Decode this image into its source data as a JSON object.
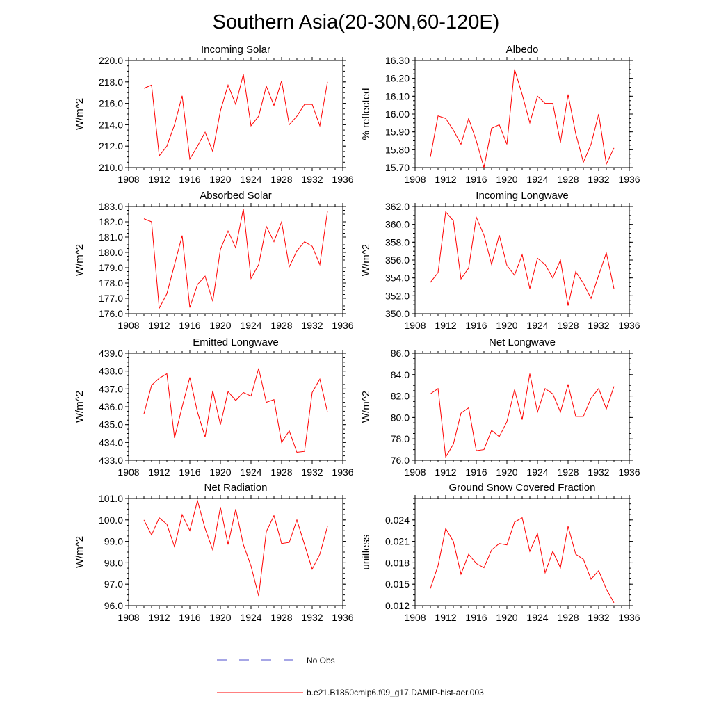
{
  "title": "Southern Asia(20-30N,60-120E)",
  "colors": {
    "model": "#ff0000",
    "obs": "#4d4dcc",
    "axis": "#000000"
  },
  "legend": [
    {
      "label": "No Obs",
      "style": "dashed",
      "color": "#4d4dcc"
    },
    {
      "label": "b.e21.B1850cmip6.f09_g17.DAMIP-hist-aer.003",
      "style": "solid",
      "color": "#ff0000"
    }
  ],
  "chart_data": [
    {
      "type": "line",
      "title": "Incoming Solar",
      "xlabel": "",
      "ylabel": "W/m^2",
      "xlim": [
        1908,
        1936
      ],
      "ylim": [
        210.0,
        220.0
      ],
      "xticks": [
        "1908",
        "1912",
        "1916",
        "1920",
        "1924",
        "1928",
        "1932",
        "1936"
      ],
      "yticks": [
        "210.0",
        "212.0",
        "214.0",
        "216.0",
        "218.0",
        "220.0"
      ],
      "x": [
        1910,
        1911,
        1912,
        1913,
        1914,
        1915,
        1916,
        1917,
        1918,
        1919,
        1920,
        1921,
        1922,
        1923,
        1924,
        1925,
        1926,
        1927,
        1928,
        1929,
        1930,
        1931,
        1932,
        1933,
        1934
      ],
      "series": [
        {
          "values": [
            217.4,
            217.7,
            211.1,
            212.0,
            214.0,
            216.7,
            210.8,
            212.0,
            213.3,
            211.5,
            215.3,
            217.7,
            215.9,
            218.7,
            213.9,
            214.8,
            217.6,
            215.8,
            218.1,
            214.0,
            214.8,
            215.9,
            215.9,
            213.9,
            218.0
          ]
        }
      ]
    },
    {
      "type": "line",
      "title": "Albedo",
      "xlabel": "",
      "ylabel": "% reflected",
      "xlim": [
        1908,
        1936
      ],
      "ylim": [
        15.7,
        16.3
      ],
      "xticks": [
        "1908",
        "1912",
        "1916",
        "1920",
        "1924",
        "1928",
        "1932",
        "1936"
      ],
      "yticks": [
        "15.70",
        "15.80",
        "15.90",
        "16.00",
        "16.10",
        "16.20",
        "16.30"
      ],
      "x": [
        1910,
        1911,
        1912,
        1913,
        1914,
        1915,
        1916,
        1917,
        1918,
        1919,
        1920,
        1921,
        1922,
        1923,
        1924,
        1925,
        1926,
        1927,
        1928,
        1929,
        1930,
        1931,
        1932,
        1933,
        1934
      ],
      "series": [
        {
          "values": [
            15.76,
            15.99,
            15.975,
            15.91,
            15.83,
            15.975,
            15.85,
            15.7,
            15.92,
            15.94,
            15.83,
            16.25,
            16.11,
            15.95,
            16.1,
            16.06,
            16.06,
            15.84,
            16.11,
            15.89,
            15.73,
            15.83,
            16.0,
            15.72,
            15.81
          ]
        }
      ]
    },
    {
      "type": "line",
      "title": "Absorbed Solar",
      "xlabel": "",
      "ylabel": "W/m^2",
      "xlim": [
        1908,
        1936
      ],
      "ylim": [
        176.0,
        183.0
      ],
      "xticks": [
        "1908",
        "1912",
        "1916",
        "1920",
        "1924",
        "1928",
        "1932",
        "1936"
      ],
      "yticks": [
        "176.0",
        "177.0",
        "178.0",
        "179.0",
        "180.0",
        "181.0",
        "182.0",
        "183.0"
      ],
      "x": [
        1910,
        1911,
        1912,
        1913,
        1914,
        1915,
        1916,
        1917,
        1918,
        1919,
        1920,
        1921,
        1922,
        1923,
        1924,
        1925,
        1926,
        1927,
        1928,
        1929,
        1930,
        1931,
        1932,
        1933,
        1934
      ],
      "series": [
        {
          "values": [
            182.2,
            182.0,
            176.35,
            177.3,
            179.2,
            181.1,
            176.4,
            177.9,
            178.45,
            176.8,
            180.2,
            181.4,
            180.3,
            182.85,
            178.3,
            179.2,
            181.7,
            180.7,
            182.0,
            179.05,
            180.1,
            180.7,
            180.4,
            179.2,
            182.7
          ]
        }
      ]
    },
    {
      "type": "line",
      "title": "Incoming Longwave",
      "xlabel": "",
      "ylabel": "W/m^2",
      "xlim": [
        1908,
        1936
      ],
      "ylim": [
        350.0,
        362.0
      ],
      "xticks": [
        "1908",
        "1912",
        "1916",
        "1920",
        "1924",
        "1928",
        "1932",
        "1936"
      ],
      "yticks": [
        "350.0",
        "352.0",
        "354.0",
        "356.0",
        "358.0",
        "360.0",
        "362.0"
      ],
      "x": [
        1910,
        1911,
        1912,
        1913,
        1914,
        1915,
        1916,
        1917,
        1918,
        1919,
        1920,
        1921,
        1922,
        1923,
        1924,
        1925,
        1926,
        1927,
        1928,
        1929,
        1930,
        1931,
        1932,
        1933,
        1934
      ],
      "series": [
        {
          "values": [
            353.5,
            354.6,
            361.4,
            360.4,
            353.9,
            355.1,
            360.8,
            358.8,
            355.5,
            358.8,
            355.4,
            354.3,
            356.6,
            352.8,
            356.2,
            355.5,
            354.0,
            356.0,
            350.9,
            354.7,
            353.4,
            351.7,
            354.3,
            356.8,
            352.8
          ]
        }
      ]
    },
    {
      "type": "line",
      "title": "Emitted Longwave",
      "xlabel": "",
      "ylabel": "W/m^2",
      "xlim": [
        1908,
        1936
      ],
      "ylim": [
        433.0,
        439.0
      ],
      "xticks": [
        "1908",
        "1912",
        "1916",
        "1920",
        "1924",
        "1928",
        "1932",
        "1936"
      ],
      "yticks": [
        "433.0",
        "434.0",
        "435.0",
        "436.0",
        "437.0",
        "438.0",
        "439.0"
      ],
      "x": [
        1910,
        1911,
        1912,
        1913,
        1914,
        1915,
        1916,
        1917,
        1918,
        1919,
        1920,
        1921,
        1922,
        1923,
        1924,
        1925,
        1926,
        1927,
        1928,
        1929,
        1930,
        1931,
        1932,
        1933,
        1934
      ],
      "series": [
        {
          "values": [
            435.6,
            437.2,
            437.6,
            437.85,
            434.25,
            436.0,
            437.65,
            435.7,
            434.3,
            436.9,
            435.0,
            436.85,
            436.35,
            436.8,
            436.6,
            438.15,
            436.25,
            436.4,
            434.0,
            434.65,
            433.45,
            433.5,
            436.8,
            437.55,
            435.7
          ]
        }
      ]
    },
    {
      "type": "line",
      "title": "Net Longwave",
      "xlabel": "",
      "ylabel": "W/m^2",
      "xlim": [
        1908,
        1936
      ],
      "ylim": [
        76.0,
        86.0
      ],
      "xticks": [
        "1908",
        "1912",
        "1916",
        "1920",
        "1924",
        "1928",
        "1932",
        "1936"
      ],
      "yticks": [
        "76.0",
        "78.0",
        "80.0",
        "82.0",
        "84.0",
        "86.0"
      ],
      "x": [
        1910,
        1911,
        1912,
        1913,
        1914,
        1915,
        1916,
        1917,
        1918,
        1919,
        1920,
        1921,
        1922,
        1923,
        1924,
        1925,
        1926,
        1927,
        1928,
        1929,
        1930,
        1931,
        1932,
        1933,
        1934
      ],
      "series": [
        {
          "values": [
            82.2,
            82.7,
            76.3,
            77.5,
            80.4,
            80.9,
            76.9,
            77.0,
            78.8,
            78.2,
            79.6,
            82.6,
            79.8,
            84.1,
            80.5,
            82.7,
            82.2,
            80.5,
            83.1,
            80.1,
            80.1,
            81.8,
            82.7,
            80.8,
            82.9
          ]
        }
      ]
    },
    {
      "type": "line",
      "title": "Net Radiation",
      "xlabel": "",
      "ylabel": "W/m^2",
      "xlim": [
        1908,
        1936
      ],
      "ylim": [
        96.0,
        101.0
      ],
      "xticks": [
        "1908",
        "1912",
        "1916",
        "1920",
        "1924",
        "1928",
        "1932",
        "1936"
      ],
      "yticks": [
        "96.0",
        "97.0",
        "98.0",
        "99.0",
        "100.0",
        "101.0"
      ],
      "x": [
        1910,
        1911,
        1912,
        1913,
        1914,
        1915,
        1916,
        1917,
        1918,
        1919,
        1920,
        1921,
        1922,
        1923,
        1924,
        1925,
        1926,
        1927,
        1928,
        1929,
        1930,
        1931,
        1932,
        1933,
        1934
      ],
      "series": [
        {
          "values": [
            100.0,
            99.3,
            100.1,
            99.8,
            98.75,
            100.25,
            99.5,
            100.9,
            99.6,
            98.6,
            100.6,
            98.85,
            100.5,
            98.85,
            97.85,
            96.45,
            99.45,
            100.2,
            98.9,
            98.95,
            100.0,
            98.85,
            97.7,
            98.4,
            99.7
          ]
        }
      ]
    },
    {
      "type": "line",
      "title": "Ground Snow Covered Fraction",
      "xlabel": "",
      "ylabel": "unitless",
      "xlim": [
        1908,
        1936
      ],
      "ylim": [
        0.012,
        0.027
      ],
      "xticks": [
        "1908",
        "1912",
        "1916",
        "1920",
        "1924",
        "1928",
        "1932",
        "1936"
      ],
      "yticks": [
        "0.012",
        "0.015",
        "0.018",
        "0.021",
        "0.024"
      ],
      "x": [
        1910,
        1911,
        1912,
        1913,
        1914,
        1915,
        1916,
        1917,
        1918,
        1919,
        1920,
        1921,
        1922,
        1923,
        1924,
        1925,
        1926,
        1927,
        1928,
        1929,
        1930,
        1931,
        1932,
        1933,
        1934
      ],
      "series": [
        {
          "values": [
            0.0144,
            0.0176,
            0.0228,
            0.021,
            0.0164,
            0.0192,
            0.0179,
            0.0173,
            0.0198,
            0.0207,
            0.0205,
            0.0237,
            0.0243,
            0.0196,
            0.0221,
            0.0166,
            0.0196,
            0.0173,
            0.0231,
            0.0192,
            0.0185,
            0.0157,
            0.0169,
            0.0143,
            0.0124
          ]
        }
      ]
    }
  ]
}
